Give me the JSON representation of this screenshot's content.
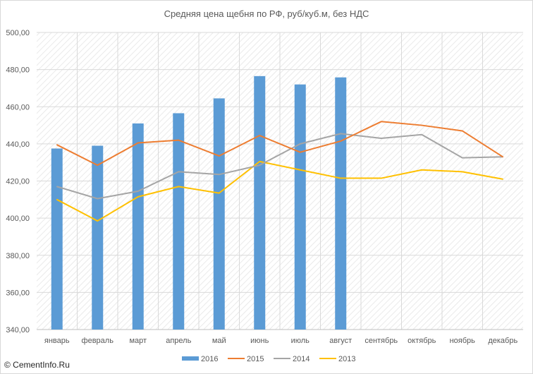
{
  "chart_data": {
    "type": "bar+line",
    "title": "Средняя цена щебня по РФ, руб/куб.м, без НДС",
    "categories": [
      "январь",
      "февраль",
      "март",
      "апрель",
      "май",
      "июнь",
      "июль",
      "август",
      "сентябрь",
      "октябрь",
      "ноябрь",
      "декабрь"
    ],
    "ylim": [
      340,
      500
    ],
    "yticks": [
      "340,00",
      "360,00",
      "380,00",
      "400,00",
      "420,00",
      "440,00",
      "460,00",
      "480,00",
      "500,00"
    ],
    "grid": true,
    "legend_position": "bottom",
    "series": [
      {
        "name": "2016",
        "kind": "bar",
        "color": "#5b9bd5",
        "values": [
          437.5,
          439.0,
          451.0,
          456.5,
          464.5,
          476.5,
          472.0,
          475.8,
          null,
          null,
          null,
          null
        ]
      },
      {
        "name": "2015",
        "kind": "line",
        "color": "#ed7d31",
        "values": [
          439.5,
          428.5,
          440.5,
          442.0,
          433.5,
          444.5,
          435.5,
          441.5,
          452.0,
          450.0,
          447.0,
          433.0
        ]
      },
      {
        "name": "2014",
        "kind": "line",
        "color": "#a5a5a5",
        "values": [
          417.0,
          410.5,
          414.5,
          425.0,
          423.5,
          428.5,
          440.0,
          445.5,
          443.0,
          445.0,
          432.5,
          433.0
        ]
      },
      {
        "name": "2013",
        "kind": "line",
        "color": "#ffc000",
        "values": [
          410.0,
          398.5,
          411.5,
          417.0,
          413.5,
          430.5,
          426.0,
          421.5,
          421.5,
          426.0,
          425.0,
          421.0
        ]
      }
    ]
  },
  "footer": {
    "credit": "© CementInfo.Ru"
  }
}
